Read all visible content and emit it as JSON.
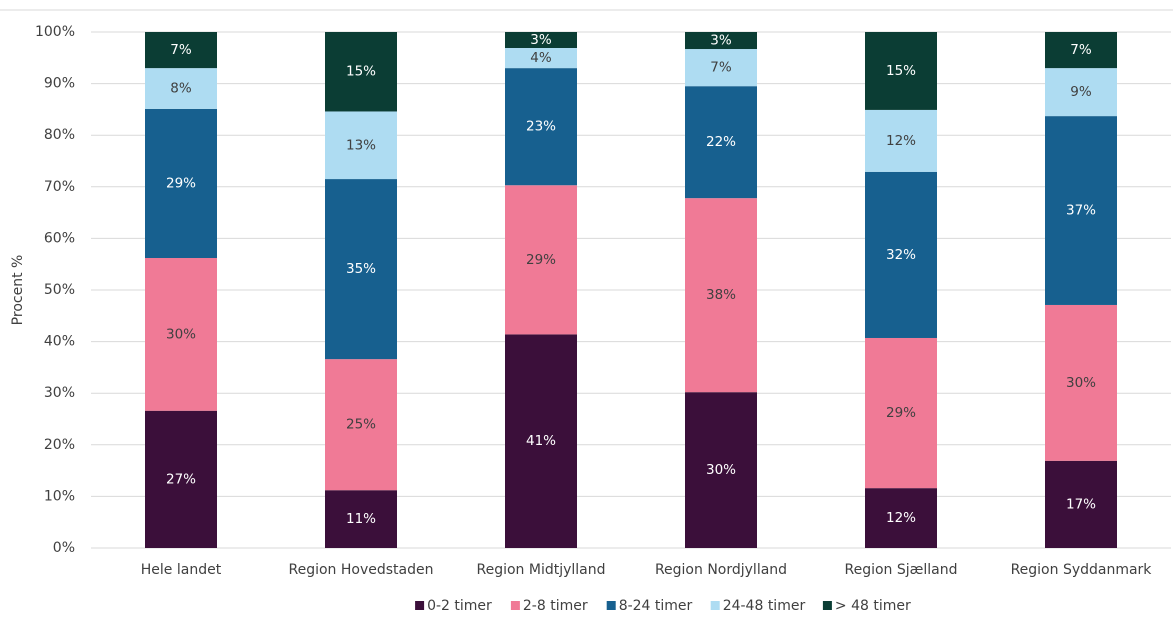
{
  "chart_data": {
    "type": "stacked_bar",
    "y_label": "Procent %",
    "categories": [
      "Hele landet",
      "Region Hovedstaden",
      "Region Midtjylland",
      "Region Nordjylland",
      "Region Sjælland",
      "Region Syddanmark"
    ],
    "series": [
      {
        "name": "0-2 timer",
        "color": "#3b0f3a",
        "values": [
          26.6,
          11.2,
          41.4,
          30.2,
          11.6,
          16.9
        ],
        "value_labels": [
          "27%",
          "11%",
          "41%",
          "30%",
          "12%",
          "17%"
        ]
      },
      {
        "name": "2-8 timer",
        "color": "#f07a96",
        "values": [
          29.6,
          25.4,
          28.9,
          37.6,
          29.1,
          30.2
        ],
        "value_labels": [
          "30%",
          "25%",
          "29%",
          "38%",
          "29%",
          "30%"
        ]
      },
      {
        "name": "8-24 timer",
        "color": "#17608f",
        "values": [
          28.9,
          34.9,
          22.7,
          21.7,
          32.2,
          36.6
        ],
        "value_labels": [
          "29%",
          "35%",
          "23%",
          "22%",
          "32%",
          "37%"
        ]
      },
      {
        "name": "24-48 timer",
        "color": "#aedcf2",
        "values": [
          7.9,
          13.1,
          3.9,
          7.2,
          12.0,
          9.3
        ],
        "value_labels": [
          "8%",
          "13%",
          "4%",
          "7%",
          "12%",
          "9%"
        ]
      },
      {
        "name": "> 48 timer",
        "color": "#0b3d34",
        "values": [
          7.0,
          15.4,
          3.1,
          3.3,
          15.1,
          7.0
        ],
        "value_labels": [
          "7%",
          "15%",
          "3%",
          "3%",
          "15%",
          "7%"
        ]
      }
    ],
    "ylim": [
      0,
      100
    ],
    "yticks": [
      {
        "value": 0,
        "label": "0%"
      },
      {
        "value": 10,
        "label": "10%"
      },
      {
        "value": 20,
        "label": "20%"
      },
      {
        "value": 30,
        "label": "30%"
      },
      {
        "value": 40,
        "label": "40%"
      },
      {
        "value": 50,
        "label": "50%"
      },
      {
        "value": 60,
        "label": "60%"
      },
      {
        "value": 70,
        "label": "70%"
      },
      {
        "value": 80,
        "label": "80%"
      },
      {
        "value": 90,
        "label": "90%"
      },
      {
        "value": 100,
        "label": "100%"
      }
    ],
    "grid": true,
    "legend": "bottom"
  }
}
